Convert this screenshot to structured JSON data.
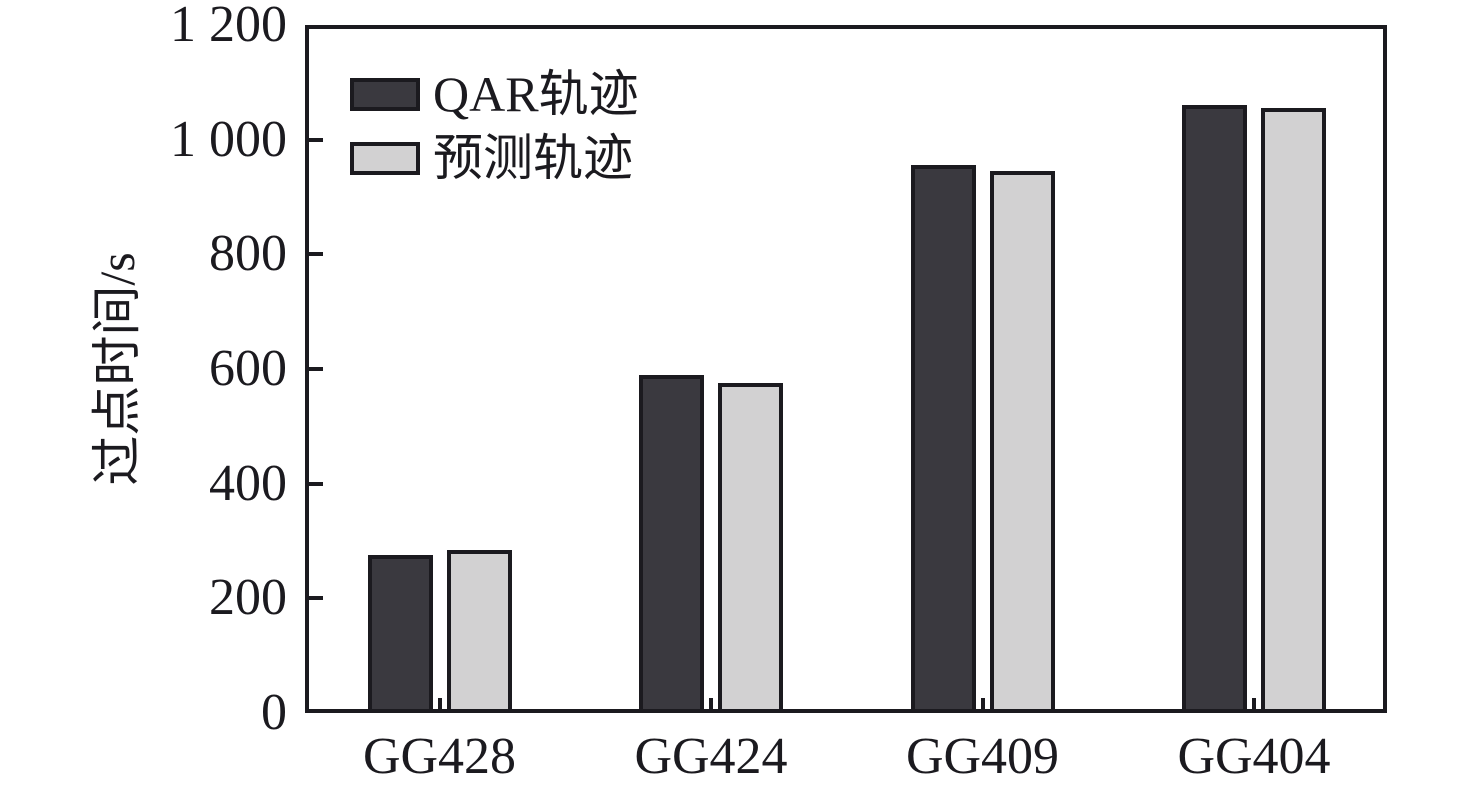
{
  "chart_data": {
    "type": "bar",
    "title": "",
    "categories": [
      "GG428",
      "GG424",
      "GG409",
      "GG404"
    ],
    "series": [
      {
        "name": "QAR轨迹",
        "color": "#3a393f",
        "values": [
          275,
          590,
          955,
          1060
        ]
      },
      {
        "name": "预测轨迹",
        "color": "#d2d1d2",
        "values": [
          285,
          575,
          945,
          1055
        ]
      }
    ],
    "xlabel": "",
    "ylabel": "过点时间/s",
    "ylim": [
      0,
      1200
    ],
    "ytick_interval": 200,
    "ytick_labels": [
      "0",
      "200",
      "400",
      "600",
      "800",
      "1 000",
      "1 200"
    ],
    "grid": false,
    "legend_position": "top-left",
    "axis_color": "#1b1a1f",
    "background_color": "#ffffff"
  }
}
